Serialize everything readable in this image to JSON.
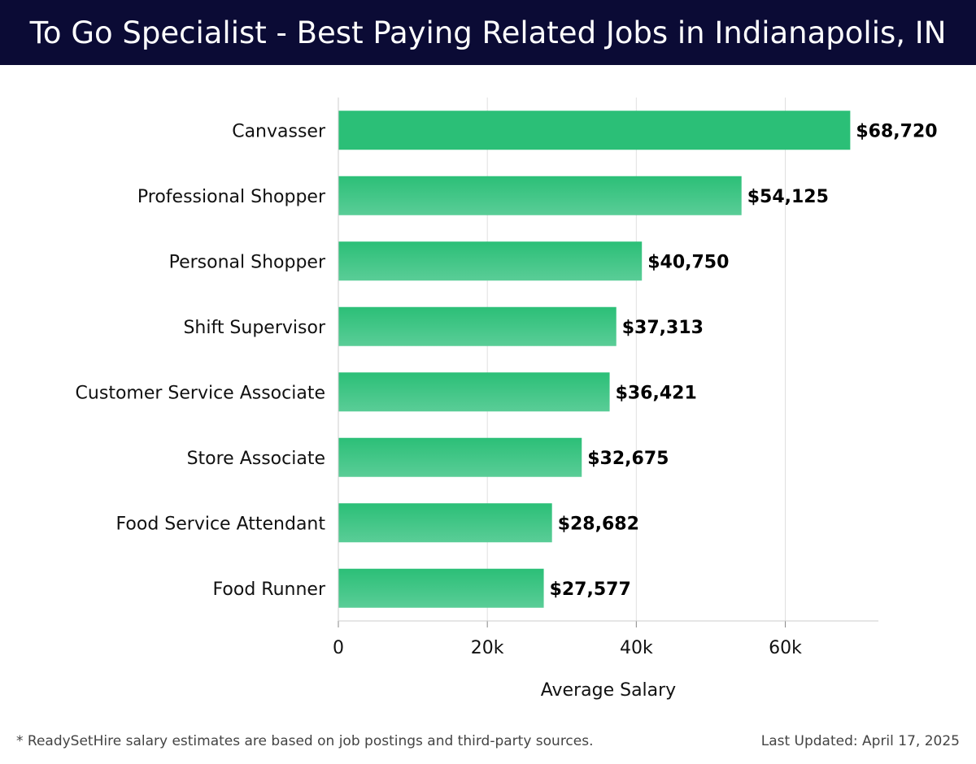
{
  "chart_data": {
    "type": "bar",
    "orientation": "horizontal",
    "title": "To Go Specialist - Best Paying Related Jobs in Indianapolis, IN",
    "categories": [
      "Canvasser",
      "Professional Shopper",
      "Personal Shopper",
      "Shift Supervisor",
      "Customer Service Associate",
      "Store Associate",
      "Food Service Attendant",
      "Food Runner"
    ],
    "values": [
      68720,
      54125,
      40750,
      37313,
      36421,
      32675,
      28682,
      27577
    ],
    "value_labels": [
      "$68,720",
      "$54,125",
      "$40,750",
      "$37,313",
      "$36,421",
      "$32,675",
      "$28,682",
      "$27,577"
    ],
    "xlabel": "Average Salary",
    "ylabel": "",
    "xlim": [
      0,
      72500
    ],
    "xticks": [
      0,
      20000,
      40000,
      60000
    ],
    "xtick_labels": [
      "0",
      "20k",
      "40k",
      "60k"
    ],
    "grid": "vertical",
    "colors": {
      "bar_top": "#2bbf77",
      "bar_bottom": "#5acd97",
      "title_bg": "#0b0b35",
      "grid": "#e0e0e0"
    }
  },
  "footer": {
    "note": "* ReadySetHire salary estimates are based on job postings and third-party sources.",
    "updated": "Last Updated: April 17, 2025"
  }
}
